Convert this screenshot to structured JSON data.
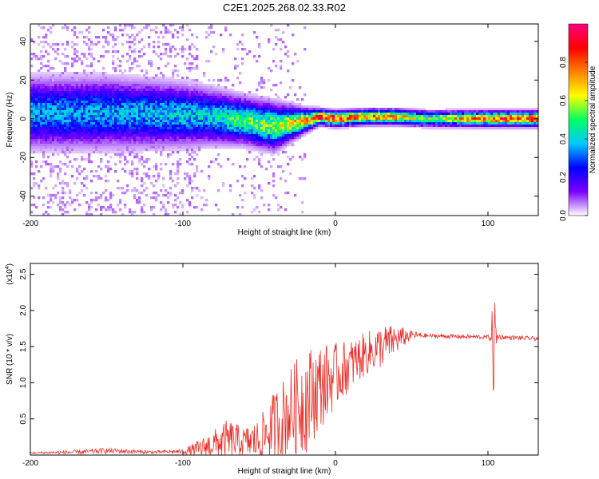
{
  "title": "C2E1.2025.268.02.33.R02",
  "colors": {
    "signal": "#e8302a",
    "frame": "#000000"
  },
  "chart_data": [
    {
      "type": "heatmap",
      "xlabel": "Height of straight line (km)",
      "ylabel": "Frequency (Hz)",
      "xlim": [
        -200,
        133
      ],
      "ylim": [
        -50,
        49
      ],
      "xticks": [
        -200,
        -100,
        0,
        100
      ],
      "xtick_labels": [
        "-200",
        "-100",
        "0",
        "100"
      ],
      "yticks": [
        -40,
        -20,
        0,
        20,
        40
      ],
      "ytick_labels": [
        "-40",
        "-20",
        "0",
        "20",
        "40"
      ],
      "colorbar": {
        "label": "Normalized spectral amplitude",
        "range": [
          0,
          1
        ],
        "ticks": [
          0.0,
          0.2,
          0.4,
          0.6,
          0.8
        ],
        "tick_labels": [
          "0.0",
          "0.2",
          "0.4",
          "0.6",
          "0.8"
        ],
        "colormap": [
          "#ffffff",
          "#7a00ff",
          "#0000ff",
          "#00c8ff",
          "#00ff60",
          "#ffff00",
          "#ff8000",
          "#ff0000",
          "#ff0080"
        ]
      },
      "ridge": {
        "x": [
          -200,
          -150,
          -100,
          -80,
          -60,
          -40,
          -20,
          -10,
          0,
          20,
          40,
          60,
          100,
          133
        ],
        "center_hz": [
          3,
          3,
          2,
          1,
          -1,
          -4,
          -1,
          1,
          0,
          1,
          1,
          0,
          0,
          0
        ],
        "spread_hz": [
          9,
          9,
          8,
          7,
          6,
          6,
          3,
          2,
          2,
          2,
          2,
          2,
          2,
          2
        ],
        "peak_amp": [
          0.35,
          0.35,
          0.38,
          0.4,
          0.5,
          0.55,
          0.7,
          0.85,
          0.85,
          0.75,
          0.7,
          0.55,
          0.8,
          0.85
        ]
      }
    },
    {
      "type": "line",
      "xlabel": "Height of straight line (km)",
      "ylabel": "SNR (10 * v/v)",
      "y_scale_label": "(x10",
      "y_scale_exponent": "4",
      "xlim": [
        -200,
        133
      ],
      "ylim": [
        0,
        2.65
      ],
      "xticks": [
        -200,
        -100,
        0,
        100
      ],
      "xtick_labels": [
        "-200",
        "-100",
        "0",
        "100"
      ],
      "yticks": [
        0.5,
        1.0,
        1.5,
        2.0,
        2.5
      ],
      "ytick_labels": [
        "0.5",
        "1.0",
        "1.5",
        "2.0",
        "2.5"
      ],
      "series": [
        {
          "name": "SNR",
          "x": [
            -200,
            -170,
            -150,
            -120,
            -100,
            -90,
            -80,
            -70,
            -60,
            -50,
            -40,
            -30,
            -20,
            -10,
            0,
            10,
            20,
            30,
            40,
            50,
            60,
            80,
            100,
            102,
            104,
            106,
            110,
            120,
            133
          ],
          "base": [
            0.03,
            0.04,
            0.06,
            0.04,
            0.05,
            0.08,
            0.15,
            0.2,
            0.18,
            0.2,
            0.4,
            0.6,
            0.75,
            0.95,
            1.1,
            1.25,
            1.4,
            1.5,
            1.6,
            1.66,
            1.65,
            1.64,
            1.63,
            1.65,
            1.5,
            1.64,
            1.63,
            1.62,
            1.61
          ],
          "noise": [
            0.01,
            0.03,
            0.04,
            0.02,
            0.03,
            0.12,
            0.2,
            0.3,
            0.2,
            0.3,
            0.5,
            0.6,
            0.75,
            0.6,
            0.45,
            0.35,
            0.3,
            0.3,
            0.2,
            0.06,
            0.03,
            0.03,
            0.03,
            0.1,
            1.0,
            0.05,
            0.03,
            0.03,
            0.03
          ]
        }
      ]
    }
  ]
}
